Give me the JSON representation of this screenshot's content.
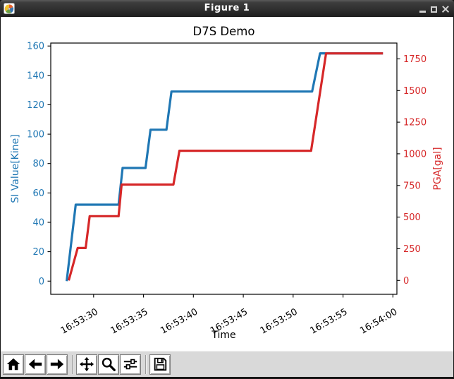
{
  "window": {
    "title": "Figure 1",
    "icon": "matplotlib-logo",
    "controls": [
      "minimize",
      "maximize",
      "close"
    ]
  },
  "toolbar": {
    "background": "#d9d9d9",
    "buttons": [
      "home",
      "back",
      "forward",
      "pan",
      "zoom-to-rect",
      "configure-subplots",
      "save"
    ]
  },
  "chart_data": {
    "type": "line",
    "title": "D7S Demo",
    "xlabel": "Time",
    "grid": false,
    "legend": "none",
    "x_unit": "seconds after 16:53:00",
    "xlim": [
      25.7,
      60.4
    ],
    "x_tick_values": [
      30,
      35,
      40,
      45,
      50,
      55,
      60
    ],
    "x_tick_labels": [
      "16:53:30",
      "16:53:35",
      "16:53:40",
      "16:53:45",
      "16:53:50",
      "16:53:55",
      "16:54:00"
    ],
    "x_tick_rotation_deg": 30,
    "axes": {
      "left": {
        "label": "SI Value[Kine]",
        "color": "#1f77b4",
        "ylim": [
          -9,
          162
        ],
        "ticks": [
          0,
          20,
          40,
          60,
          80,
          100,
          120,
          140,
          160
        ]
      },
      "right": {
        "label": "PGA[gal]",
        "color": "#d62728",
        "ylim": [
          -110,
          1875
        ],
        "ticks": [
          0,
          250,
          500,
          750,
          1000,
          1250,
          1500,
          1750
        ]
      }
    },
    "series": [
      {
        "name": "SI Value",
        "axis": "left",
        "color": "#1f77b4",
        "linewidth": 3.2,
        "points": [
          [
            27.3,
            0
          ],
          [
            28.2,
            52
          ],
          [
            32.5,
            52
          ],
          [
            32.9,
            77
          ],
          [
            35.2,
            77
          ],
          [
            35.7,
            103
          ],
          [
            37.3,
            103
          ],
          [
            37.8,
            129
          ],
          [
            51.9,
            129
          ],
          [
            52.7,
            155
          ],
          [
            59.0,
            155
          ]
        ]
      },
      {
        "name": "PGA",
        "axis": "right",
        "color": "#d62728",
        "linewidth": 3.2,
        "points": [
          [
            27.5,
            0
          ],
          [
            28.4,
            256
          ],
          [
            29.2,
            256
          ],
          [
            29.6,
            507
          ],
          [
            32.5,
            507
          ],
          [
            32.8,
            757
          ],
          [
            38.0,
            757
          ],
          [
            38.6,
            1024
          ],
          [
            51.8,
            1024
          ],
          [
            53.3,
            1793
          ],
          [
            59.0,
            1793
          ]
        ]
      }
    ]
  }
}
